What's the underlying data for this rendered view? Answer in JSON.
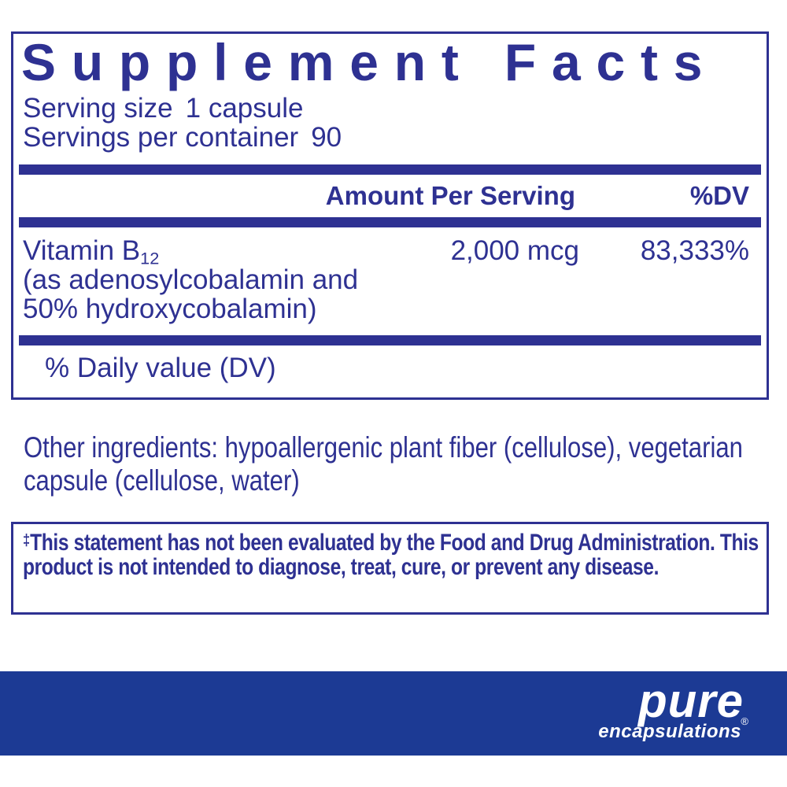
{
  "colors": {
    "navy": "#2e3192",
    "band_blue": "#1c3a94",
    "background": "#ffffff",
    "logo_text": "#ffffff"
  },
  "panel": {
    "title": "Supplement Facts",
    "serving_size_label": "Serving size",
    "serving_size_value": "1 capsule",
    "servings_label": "Servings per container",
    "servings_value": "90",
    "amount_header": "Amount Per Serving",
    "dv_header": "%DV",
    "row": {
      "name_base": "Vitamin B",
      "name_subscript": "12",
      "note_line1": "(as adenosylcobalamin and",
      "note_line2": "50% hydroxycobalamin)",
      "amount": "2,000 mcg",
      "dv": "83,333%"
    },
    "footnote": "% Daily value (DV)"
  },
  "other_ingredients": "Other ingredients: hypoallergenic plant fiber (cellulose), vegetarian capsule (cellulose, water)",
  "disclaimer": {
    "dagger": "‡",
    "text": "This statement has not been evaluated by the Food and Drug Administration. This product is not intended to diagnose, treat, cure, or prevent any disease."
  },
  "brand": {
    "name": "pure",
    "subname": "encapsulations",
    "registered": "®"
  }
}
